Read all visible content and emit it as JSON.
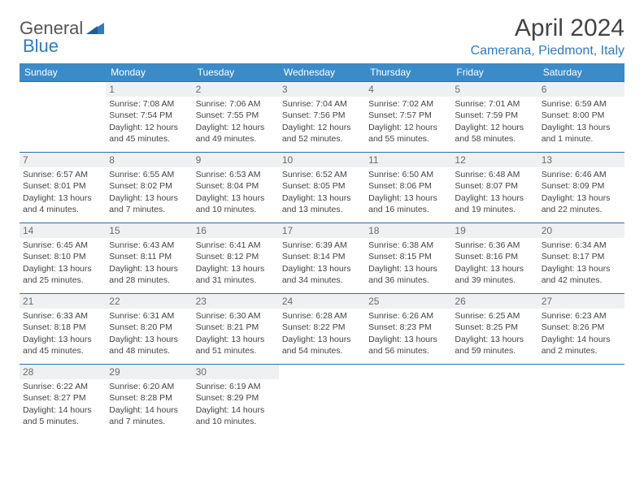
{
  "brand": {
    "part1": "General",
    "part2": "Blue"
  },
  "title": "April 2024",
  "location": "Camerana, Piedmont, Italy",
  "columns": [
    "Sunday",
    "Monday",
    "Tuesday",
    "Wednesday",
    "Thursday",
    "Friday",
    "Saturday"
  ],
  "colors": {
    "header_bg": "#3b8bc9",
    "header_fg": "#ffffff",
    "border": "#2f6fa8",
    "daynum_bg": "#eef0f2",
    "brand_blue": "#2f7bbf"
  },
  "weeks": [
    [
      {
        "n": "",
        "sr": "",
        "ss": "",
        "dl": ""
      },
      {
        "n": "1",
        "sr": "Sunrise: 7:08 AM",
        "ss": "Sunset: 7:54 PM",
        "dl": "Daylight: 12 hours and 45 minutes."
      },
      {
        "n": "2",
        "sr": "Sunrise: 7:06 AM",
        "ss": "Sunset: 7:55 PM",
        "dl": "Daylight: 12 hours and 49 minutes."
      },
      {
        "n": "3",
        "sr": "Sunrise: 7:04 AM",
        "ss": "Sunset: 7:56 PM",
        "dl": "Daylight: 12 hours and 52 minutes."
      },
      {
        "n": "4",
        "sr": "Sunrise: 7:02 AM",
        "ss": "Sunset: 7:57 PM",
        "dl": "Daylight: 12 hours and 55 minutes."
      },
      {
        "n": "5",
        "sr": "Sunrise: 7:01 AM",
        "ss": "Sunset: 7:59 PM",
        "dl": "Daylight: 12 hours and 58 minutes."
      },
      {
        "n": "6",
        "sr": "Sunrise: 6:59 AM",
        "ss": "Sunset: 8:00 PM",
        "dl": "Daylight: 13 hours and 1 minute."
      }
    ],
    [
      {
        "n": "7",
        "sr": "Sunrise: 6:57 AM",
        "ss": "Sunset: 8:01 PM",
        "dl": "Daylight: 13 hours and 4 minutes."
      },
      {
        "n": "8",
        "sr": "Sunrise: 6:55 AM",
        "ss": "Sunset: 8:02 PM",
        "dl": "Daylight: 13 hours and 7 minutes."
      },
      {
        "n": "9",
        "sr": "Sunrise: 6:53 AM",
        "ss": "Sunset: 8:04 PM",
        "dl": "Daylight: 13 hours and 10 minutes."
      },
      {
        "n": "10",
        "sr": "Sunrise: 6:52 AM",
        "ss": "Sunset: 8:05 PM",
        "dl": "Daylight: 13 hours and 13 minutes."
      },
      {
        "n": "11",
        "sr": "Sunrise: 6:50 AM",
        "ss": "Sunset: 8:06 PM",
        "dl": "Daylight: 13 hours and 16 minutes."
      },
      {
        "n": "12",
        "sr": "Sunrise: 6:48 AM",
        "ss": "Sunset: 8:07 PM",
        "dl": "Daylight: 13 hours and 19 minutes."
      },
      {
        "n": "13",
        "sr": "Sunrise: 6:46 AM",
        "ss": "Sunset: 8:09 PM",
        "dl": "Daylight: 13 hours and 22 minutes."
      }
    ],
    [
      {
        "n": "14",
        "sr": "Sunrise: 6:45 AM",
        "ss": "Sunset: 8:10 PM",
        "dl": "Daylight: 13 hours and 25 minutes."
      },
      {
        "n": "15",
        "sr": "Sunrise: 6:43 AM",
        "ss": "Sunset: 8:11 PM",
        "dl": "Daylight: 13 hours and 28 minutes."
      },
      {
        "n": "16",
        "sr": "Sunrise: 6:41 AM",
        "ss": "Sunset: 8:12 PM",
        "dl": "Daylight: 13 hours and 31 minutes."
      },
      {
        "n": "17",
        "sr": "Sunrise: 6:39 AM",
        "ss": "Sunset: 8:14 PM",
        "dl": "Daylight: 13 hours and 34 minutes."
      },
      {
        "n": "18",
        "sr": "Sunrise: 6:38 AM",
        "ss": "Sunset: 8:15 PM",
        "dl": "Daylight: 13 hours and 36 minutes."
      },
      {
        "n": "19",
        "sr": "Sunrise: 6:36 AM",
        "ss": "Sunset: 8:16 PM",
        "dl": "Daylight: 13 hours and 39 minutes."
      },
      {
        "n": "20",
        "sr": "Sunrise: 6:34 AM",
        "ss": "Sunset: 8:17 PM",
        "dl": "Daylight: 13 hours and 42 minutes."
      }
    ],
    [
      {
        "n": "21",
        "sr": "Sunrise: 6:33 AM",
        "ss": "Sunset: 8:18 PM",
        "dl": "Daylight: 13 hours and 45 minutes."
      },
      {
        "n": "22",
        "sr": "Sunrise: 6:31 AM",
        "ss": "Sunset: 8:20 PM",
        "dl": "Daylight: 13 hours and 48 minutes."
      },
      {
        "n": "23",
        "sr": "Sunrise: 6:30 AM",
        "ss": "Sunset: 8:21 PM",
        "dl": "Daylight: 13 hours and 51 minutes."
      },
      {
        "n": "24",
        "sr": "Sunrise: 6:28 AM",
        "ss": "Sunset: 8:22 PM",
        "dl": "Daylight: 13 hours and 54 minutes."
      },
      {
        "n": "25",
        "sr": "Sunrise: 6:26 AM",
        "ss": "Sunset: 8:23 PM",
        "dl": "Daylight: 13 hours and 56 minutes."
      },
      {
        "n": "26",
        "sr": "Sunrise: 6:25 AM",
        "ss": "Sunset: 8:25 PM",
        "dl": "Daylight: 13 hours and 59 minutes."
      },
      {
        "n": "27",
        "sr": "Sunrise: 6:23 AM",
        "ss": "Sunset: 8:26 PM",
        "dl": "Daylight: 14 hours and 2 minutes."
      }
    ],
    [
      {
        "n": "28",
        "sr": "Sunrise: 6:22 AM",
        "ss": "Sunset: 8:27 PM",
        "dl": "Daylight: 14 hours and 5 minutes."
      },
      {
        "n": "29",
        "sr": "Sunrise: 6:20 AM",
        "ss": "Sunset: 8:28 PM",
        "dl": "Daylight: 14 hours and 7 minutes."
      },
      {
        "n": "30",
        "sr": "Sunrise: 6:19 AM",
        "ss": "Sunset: 8:29 PM",
        "dl": "Daylight: 14 hours and 10 minutes."
      },
      {
        "n": "",
        "sr": "",
        "ss": "",
        "dl": ""
      },
      {
        "n": "",
        "sr": "",
        "ss": "",
        "dl": ""
      },
      {
        "n": "",
        "sr": "",
        "ss": "",
        "dl": ""
      },
      {
        "n": "",
        "sr": "",
        "ss": "",
        "dl": ""
      }
    ]
  ]
}
